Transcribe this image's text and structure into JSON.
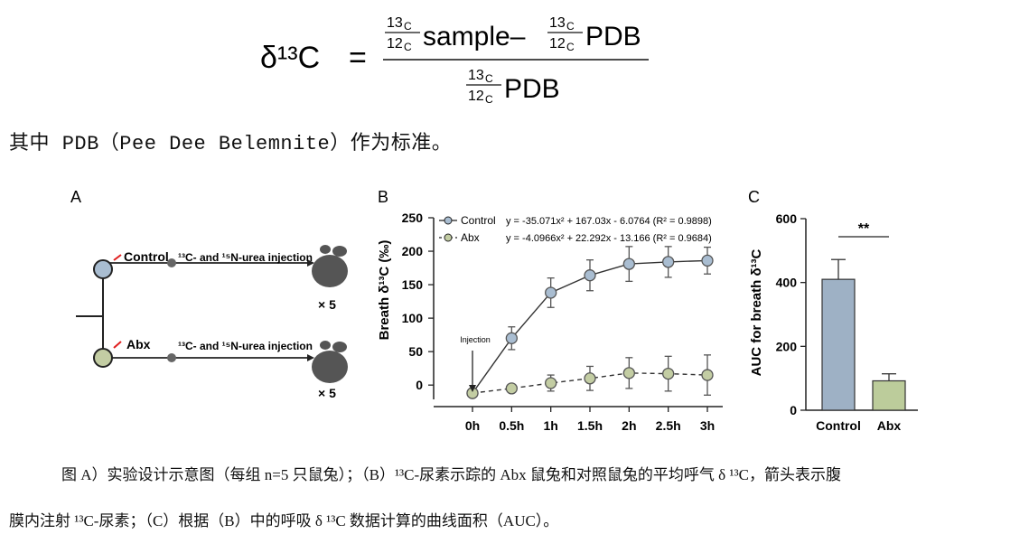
{
  "formula": {
    "lhs": "δ¹³C",
    "equals": "=",
    "ratio_num": "13",
    "ratio_num_el": "C",
    "ratio_den": "12",
    "ratio_den_el": "C",
    "sample_word": "sample–",
    "pdb_word": "PDB"
  },
  "intro_text": "其中 PDB（Pee Dee Belemnite）作为标准。",
  "panel_a": {
    "label": "A",
    "group1": "Control",
    "group2": "Abx",
    "injection": "¹³C- and ¹⁵N-urea injection",
    "count": "× 5"
  },
  "panel_b": {
    "label": "B",
    "ylabel": "Breath δ¹³C (‰)",
    "legend": [
      {
        "name": "Control",
        "equation": "y = -35.071x² + 167.03x - 6.0764 (R² = 0.9898)",
        "color": "#a9bdd1"
      },
      {
        "name": "Abx",
        "equation": "y = -4.0966x² + 22.292x - 13.166 (R² = 0.9684)",
        "color": "#c3cda3"
      }
    ],
    "annotation": "Injection"
  },
  "panel_c": {
    "label": "C",
    "ylabel": "AUC for breath δ¹³C",
    "significance": "**"
  },
  "chart_data": [
    {
      "type": "line",
      "title": "",
      "xlabel": "",
      "ylabel": "Breath δ13C (‰)",
      "categories": [
        "0h",
        "0.5h",
        "1h",
        "1.5h",
        "2h",
        "2.5h",
        "3h"
      ],
      "x": [
        0,
        0.5,
        1,
        1.5,
        2,
        2.5,
        3
      ],
      "ylim": [
        -20,
        250
      ],
      "yticks": [
        0,
        50,
        100,
        150,
        200,
        250
      ],
      "series": [
        {
          "name": "Control",
          "values": [
            -12,
            70,
            138,
            164,
            181,
            184,
            186
          ],
          "errors": [
            0,
            17,
            22,
            23,
            26,
            23,
            20
          ],
          "color": "#a9bdd1"
        },
        {
          "name": "Abx",
          "values": [
            -12,
            -5,
            3,
            10,
            18,
            17,
            15
          ],
          "errors": [
            0,
            0,
            12,
            18,
            23,
            26,
            30
          ],
          "color": "#c3cda3"
        }
      ]
    },
    {
      "type": "bar",
      "title": "",
      "xlabel": "",
      "ylabel": "AUC for breath δ13C",
      "categories": [
        "Control",
        "Abx"
      ],
      "values": [
        410,
        92
      ],
      "errors": [
        62,
        22
      ],
      "colors": [
        "#9eb1c5",
        "#bccc9b"
      ],
      "ylim": [
        0,
        600
      ],
      "yticks": [
        0,
        200,
        400,
        600
      ]
    }
  ],
  "caption": {
    "line1": "图 A）实验设计示意图（每组 n=5 只鼠兔）；（B）¹³C-尿素示踪的 Abx 鼠兔和对照鼠兔的平均呼气 δ ¹³C，箭头表示腹",
    "line2": "膜内注射 ¹³C-尿素；（C）根据（B）中的呼吸 δ ¹³C 数据计算的曲线面积（AUC）。"
  }
}
